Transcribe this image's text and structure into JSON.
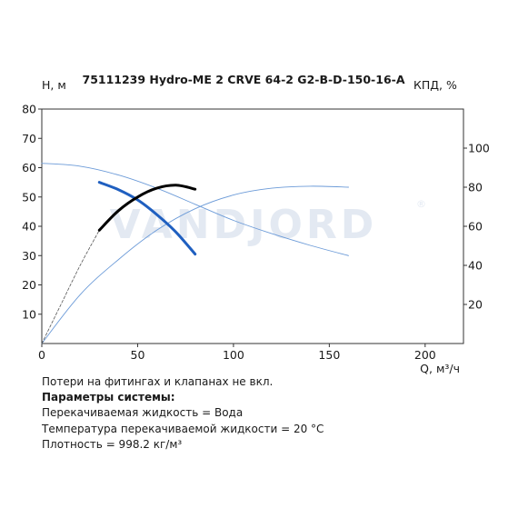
{
  "chart_data": {
    "type": "line",
    "title": "75111239 Hydro-ME 2 CRVE 64-2 G2-B-D-150-16-A",
    "ylabel_left": "H, м",
    "ylabel_right": "КПД, %",
    "xlabel": "Q, м³/ч",
    "xlim": [
      0,
      220
    ],
    "ylim_left": [
      0,
      80
    ],
    "ylim_right": [
      0,
      120
    ],
    "x_ticks": [
      "0",
      "50",
      "100",
      "150",
      "200"
    ],
    "y_left_ticks": [
      "10",
      "20",
      "30",
      "40",
      "50",
      "60",
      "70",
      "80"
    ],
    "y_right_ticks": [
      "20",
      "40",
      "60",
      "80",
      "100"
    ],
    "grid": false,
    "watermark": "VANDJORD",
    "colors": {
      "thin_curve": "#6c9bd8",
      "operating_head": "#1f5fc0",
      "operating_eff": "#000000",
      "watermark": "#e3e9f2"
    },
    "series": [
      {
        "axis": "left",
        "style": "thin",
        "x": [
          0,
          20,
          40,
          60,
          80,
          100,
          120,
          140,
          160
        ],
        "y": [
          61.5,
          60.5,
          57.5,
          53,
          47.5,
          42,
          37.5,
          33.5,
          30
        ]
      },
      {
        "axis": "right",
        "style": "thin",
        "x": [
          0,
          20,
          40,
          60,
          80,
          100,
          120,
          140,
          160
        ],
        "y": [
          0,
          25,
          43,
          58,
          69,
          76,
          79.5,
          80.5,
          80
        ]
      },
      {
        "axis": "left",
        "style": "operating",
        "x": [
          30,
          40,
          50,
          60,
          70,
          80
        ],
        "y": [
          55,
          52.5,
          49,
          44,
          38,
          30.5
        ]
      },
      {
        "axis": "right",
        "style": "operating",
        "x": [
          30,
          40,
          50,
          60,
          70,
          80
        ],
        "y": [
          58,
          68,
          75,
          79.5,
          81,
          79
        ]
      },
      {
        "axis": "right",
        "style": "dashed",
        "x": [
          0,
          10,
          20,
          30
        ],
        "y": [
          0,
          20,
          40,
          58
        ]
      }
    ]
  },
  "notes": {
    "line1": "Потери на фитингах и клапанах не вкл.",
    "line2": "Параметры системы:",
    "line3": "Перекачиваемая жидкость = Вода",
    "line4": "Температура перекачиваемой жидкости = 20 °C",
    "line5": "Плотность = 998.2 кг/м³"
  }
}
